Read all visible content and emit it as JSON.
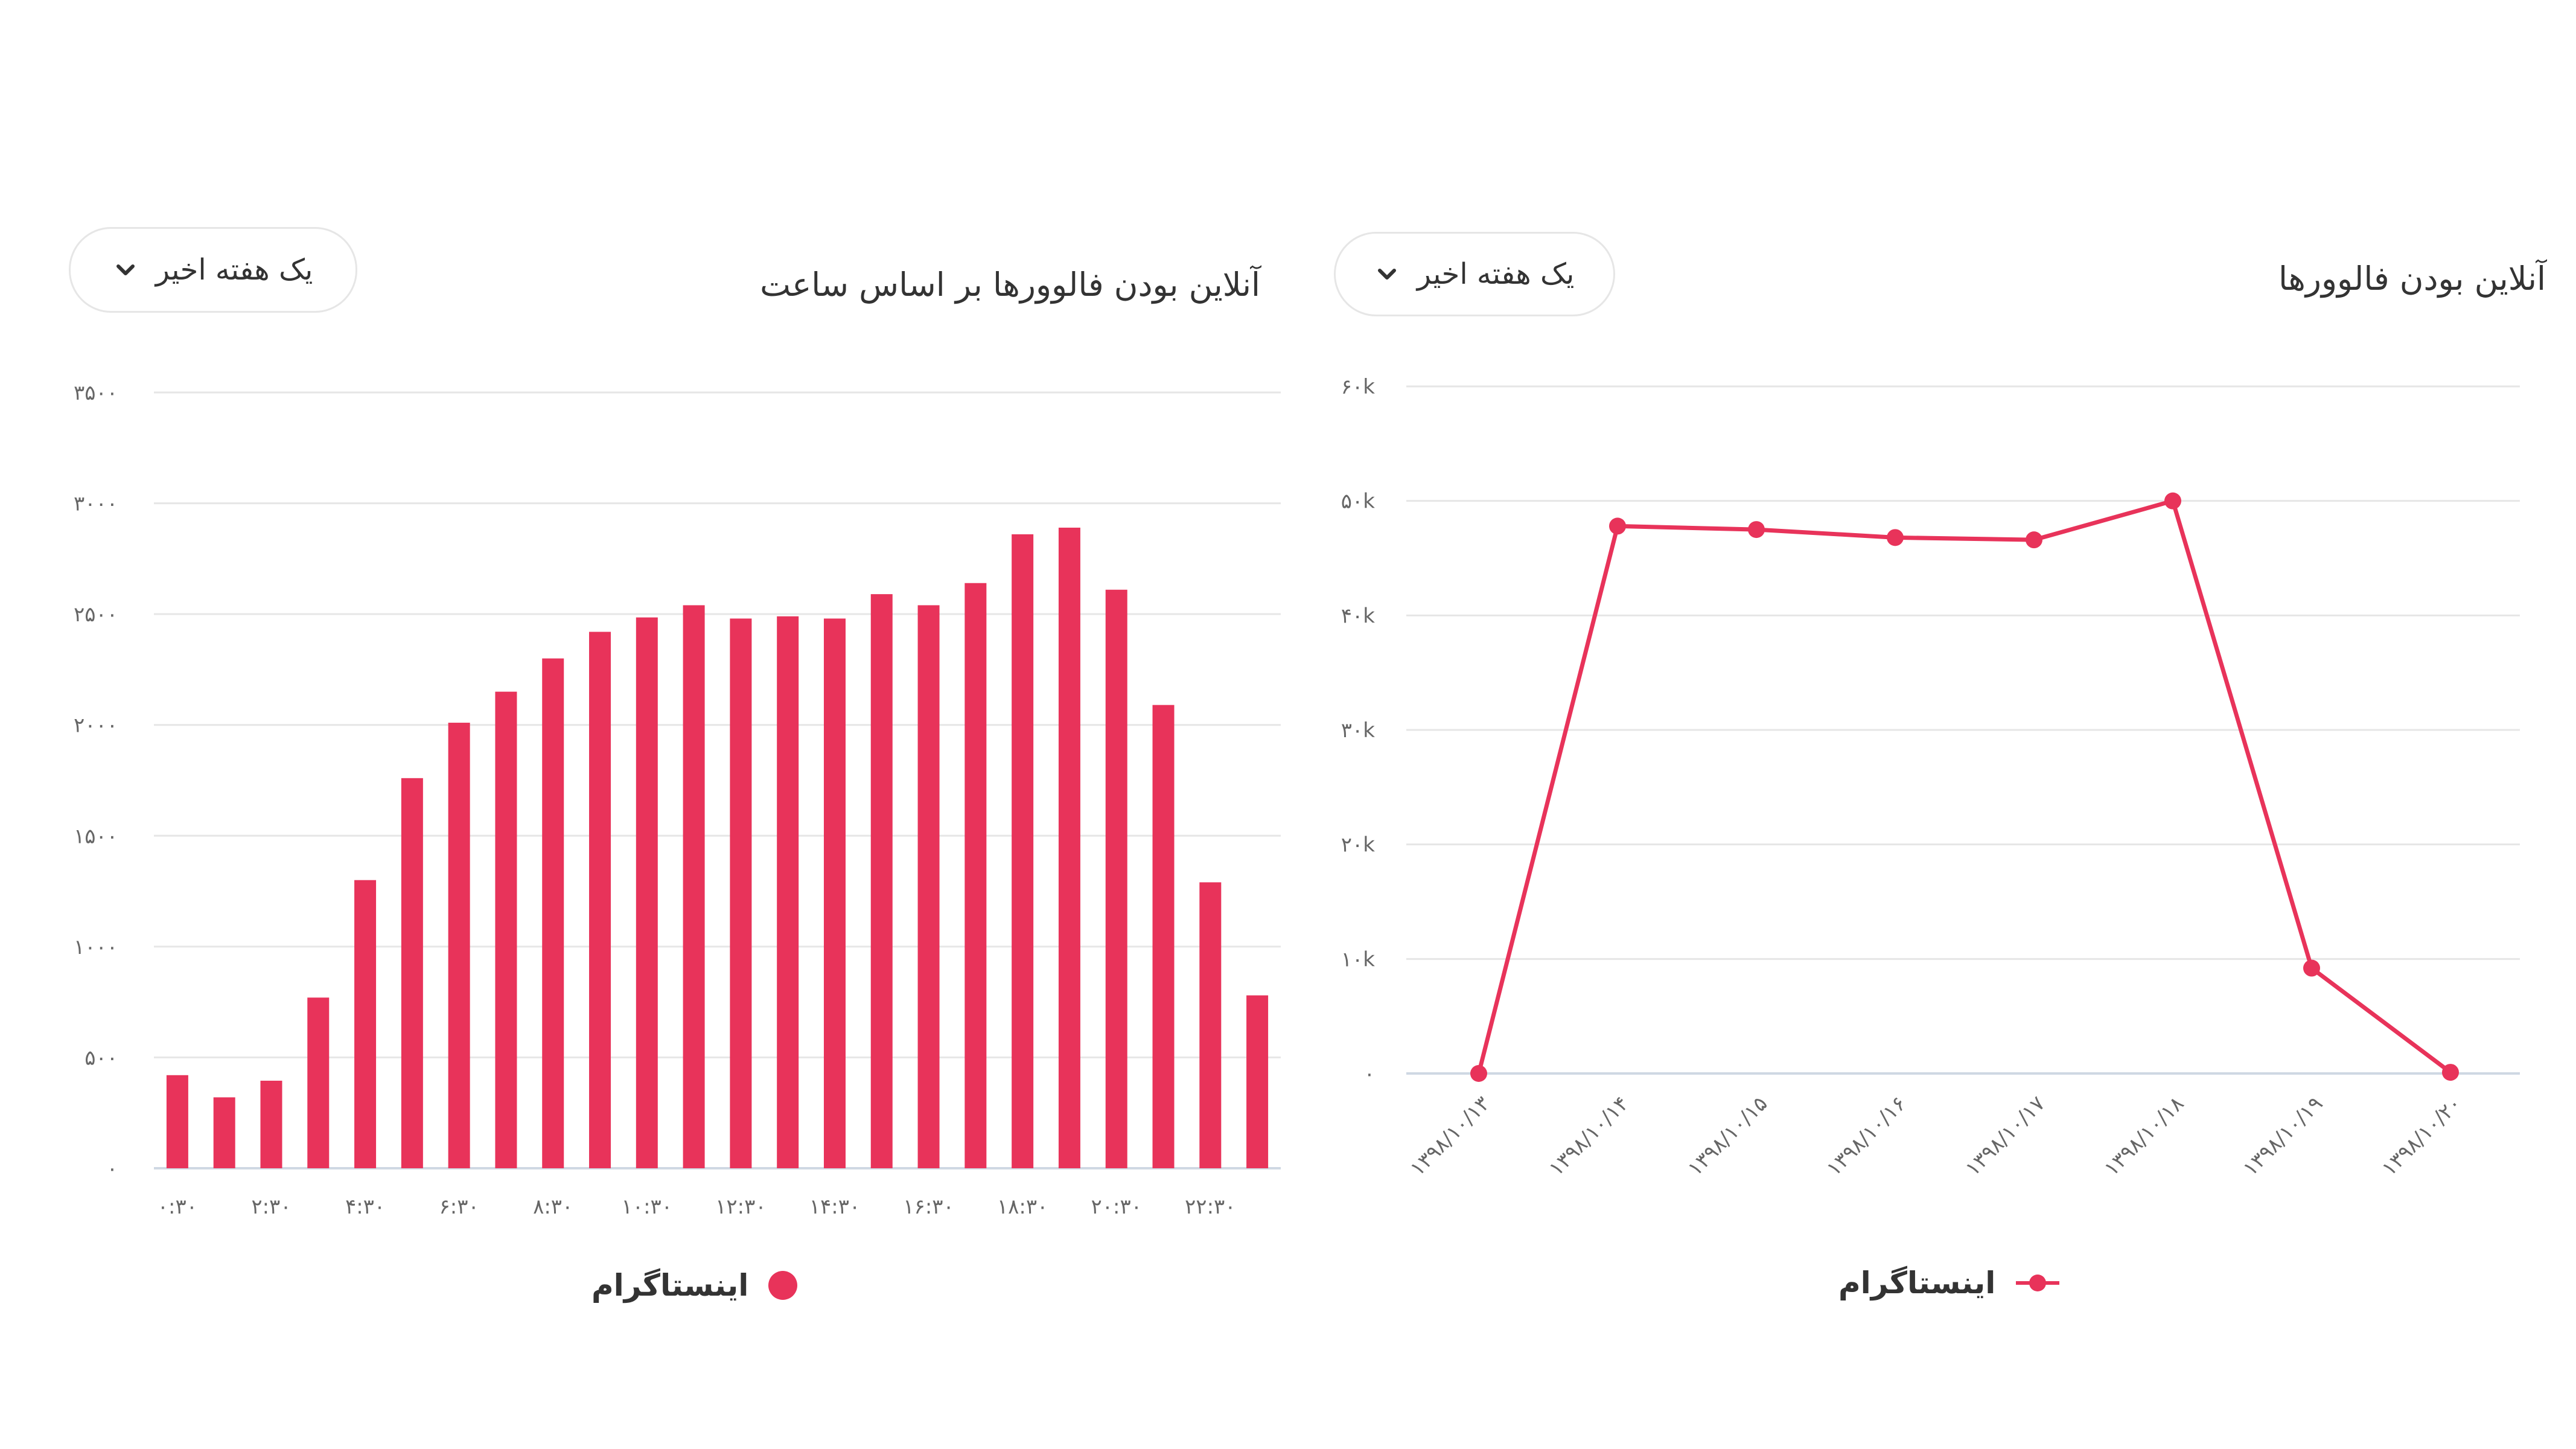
{
  "left_panel": {
    "title": "آنلاین بودن فالوورها بر اساس ساعت",
    "period_select": "یک هفته اخیر",
    "legend": {
      "label": "اینستاگرام",
      "icon": "circle-marker-icon"
    }
  },
  "right_panel": {
    "title": "آنلاین بودن فالوورها",
    "period_select": "یک هفته اخیر",
    "legend": {
      "label": "اینستاگرام",
      "icon": "line-marker-icon"
    }
  },
  "colors": {
    "series": "#e8335a",
    "grid": "#e6e6e6",
    "axis": "#cfd8e3"
  },
  "chart_data": [
    {
      "type": "bar",
      "title": "آنلاین بودن فالوورها بر اساس ساعت",
      "ylim": [
        0,
        3500
      ],
      "y_ticks": [
        0,
        500,
        1000,
        1500,
        2000,
        2500,
        3000,
        3500
      ],
      "y_tick_labels": [
        "۰",
        "۵۰۰",
        "۱۰۰۰",
        "۱۵۰۰",
        "۲۰۰۰",
        "۲۵۰۰",
        "۳۰۰۰",
        "۳۵۰۰"
      ],
      "categories": [
        "۰:۳۰",
        "۱:۳۰",
        "۲:۳۰",
        "۳:۳۰",
        "۴:۳۰",
        "۵:۳۰",
        "۶:۳۰",
        "۷:۳۰",
        "۸:۳۰",
        "۹:۳۰",
        "۱۰:۳۰",
        "۱۱:۳۰",
        "۱۲:۳۰",
        "۱۳:۳۰",
        "۱۴:۳۰",
        "۱۵:۳۰",
        "۱۶:۳۰",
        "۱۷:۳۰",
        "۱۸:۳۰",
        "۱۹:۳۰",
        "۲۰:۳۰",
        "۲۱:۳۰",
        "۲۲:۳۰",
        "۲۳:۳۰"
      ],
      "x_tick_labels": [
        "۰:۳۰",
        "۲:۳۰",
        "۴:۳۰",
        "۶:۳۰",
        "۸:۳۰",
        "۱۰:۳۰",
        "۱۲:۳۰",
        "۱۴:۳۰",
        "۱۶:۳۰",
        "۱۸:۳۰",
        "۲۰:۳۰",
        "۲۲:۳۰"
      ],
      "series": [
        {
          "name": "اینستاگرام",
          "values": [
            420,
            320,
            395,
            770,
            1300,
            1760,
            2010,
            2150,
            2300,
            2420,
            2485,
            2540,
            2480,
            2490,
            2480,
            2590,
            2540,
            2640,
            2860,
            2890,
            2610,
            2090,
            1290,
            780
          ]
        }
      ],
      "legend": "bottom",
      "grid": true
    },
    {
      "type": "line",
      "title": "آنلاین بودن فالوورها",
      "ylim": [
        0,
        60000
      ],
      "y_ticks": [
        0,
        10000,
        20000,
        30000,
        40000,
        50000,
        60000
      ],
      "y_tick_labels": [
        "۰",
        "۱۰k",
        "۲۰k",
        "۳۰k",
        "۴۰k",
        "۵۰k",
        "۶۰k"
      ],
      "x": [
        "۱۳۹۸/۱۰/۱۳",
        "۱۳۹۸/۱۰/۱۴",
        "۱۳۹۸/۱۰/۱۵",
        "۱۳۹۸/۱۰/۱۶",
        "۱۳۹۸/۱۰/۱۷",
        "۱۳۹۸/۱۰/۱۸",
        "۱۳۹۸/۱۰/۱۹",
        "۱۳۹۸/۱۰/۲۰"
      ],
      "series": [
        {
          "name": "اینستاگرام",
          "values": [
            0,
            47800,
            47500,
            46800,
            46600,
            50000,
            9200,
            100
          ]
        }
      ],
      "legend": "bottom",
      "grid": true
    }
  ]
}
